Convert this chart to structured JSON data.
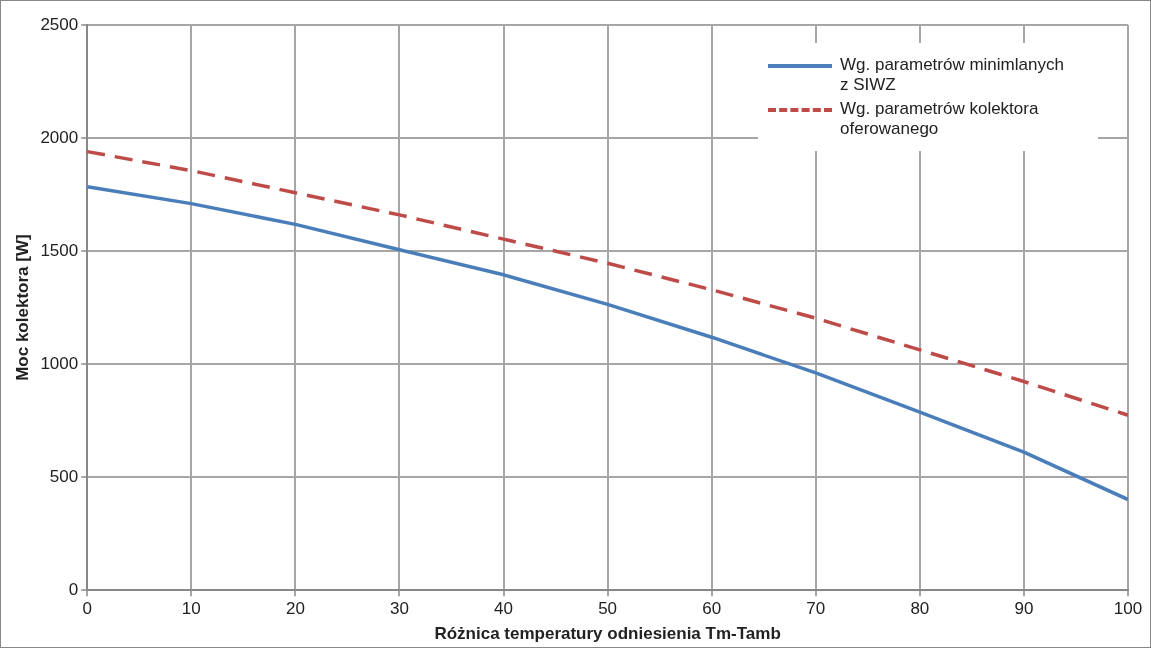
{
  "chart_data": {
    "type": "line",
    "xlabel": "Różnica temperatury odniesienia Tm-Tamb",
    "ylabel": "Moc kolektora [W]",
    "x": [
      0,
      10,
      20,
      30,
      40,
      50,
      60,
      70,
      80,
      90,
      100
    ],
    "series": [
      {
        "name": "Wg. parametrów minimlanych z SIWZ",
        "color": "#4a7ebb",
        "line_style": "solid",
        "values": [
          1785,
          1710,
          1618,
          1506,
          1395,
          1264,
          1119,
          961,
          788,
          611,
          401
        ]
      },
      {
        "name": "Wg. parametrów kolektora oferowanego",
        "color": "#be4b48",
        "line_style": "dashed",
        "values": [
          1940,
          1856,
          1758,
          1660,
          1553,
          1446,
          1329,
          1203,
          1063,
          923,
          774
        ]
      }
    ],
    "xlim": [
      0,
      100
    ],
    "xticks": [
      0,
      10,
      20,
      30,
      40,
      50,
      60,
      70,
      80,
      90,
      100
    ],
    "ylim": [
      0,
      2500
    ],
    "yticks": [
      0,
      500,
      1000,
      1500,
      2000,
      2500
    ],
    "grid": true,
    "legend": "top right",
    "marker": "none"
  }
}
